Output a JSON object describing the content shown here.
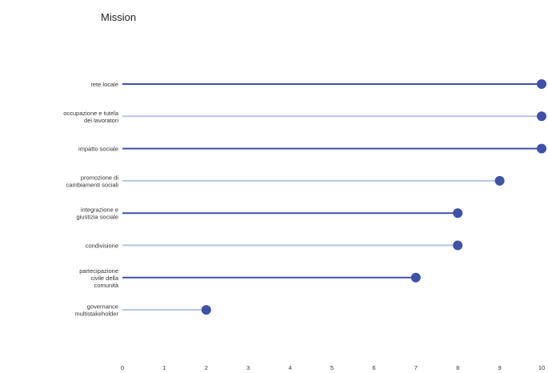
{
  "chart_data": {
    "type": "lollipop",
    "title": "Mission",
    "xlabel": "",
    "ylabel": "",
    "xlim": [
      0,
      10
    ],
    "xticks": [
      0,
      1,
      2,
      3,
      4,
      5,
      6,
      7,
      8,
      9,
      10
    ],
    "grid": false,
    "legend": "none",
    "categories": [
      "rete locale",
      "occupazione e tutela dei lavoratori",
      "impatto sociale",
      "promozione di cambiamenti sociali",
      "integrazione e giustizia sociale",
      "condivisione",
      "partecipazione civile della comunità",
      "governance multistakeholder"
    ],
    "category_lines": [
      [
        "rete locale"
      ],
      [
        "occupazione e tutela",
        "dei lavoratori"
      ],
      [
        "impatto sociale"
      ],
      [
        "promozione di",
        "cambiamenti sociali"
      ],
      [
        "integrazione e",
        "giustizia sociale"
      ],
      [
        "condivisione"
      ],
      [
        "partecipazione",
        "civile della",
        "comunità"
      ],
      [
        "governance",
        "multistakeholder"
      ]
    ],
    "values": [
      10,
      10,
      10,
      9,
      8,
      8,
      7,
      2
    ],
    "colors": {
      "dark_line": "#3f51a8",
      "light_line": "#b9c2e4",
      "dot": "#3f51a8"
    }
  }
}
